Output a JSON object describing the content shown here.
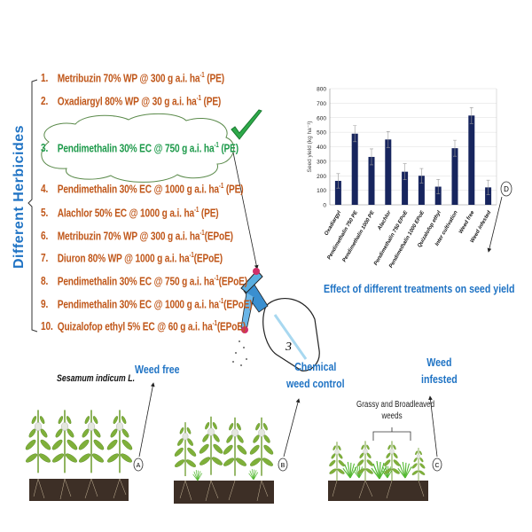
{
  "side_title": "Different Herbicides",
  "herbicides": [
    {
      "num": "1.",
      "name": "Metribuzin 70% WP @ 300 g a.i. ha",
      "sup": "-1",
      "tail": " (PE)"
    },
    {
      "num": "2.",
      "name": "Oxadiargyl 80% WP @ 30 g a.i. ha",
      "sup": "-1",
      "tail": " (PE)"
    },
    {
      "num": "3.",
      "name": "Pendimethalin 30% EC @ 750 g a.i. ha",
      "sup": "-1",
      "tail": " (PE)",
      "highlighted": true
    },
    {
      "num": "4.",
      "name": "Pendimethalin 30% EC @ 1000 g a.i. ha",
      "sup": "-1",
      "tail": " (PE)"
    },
    {
      "num": "5.",
      "name": "Alachlor 50% EC @ 1000 g a.i. ha",
      "sup": "-1",
      "tail": " (PE)"
    },
    {
      "num": "6.",
      "name": "Metribuzin 70% WP @ 300 g a.i. ha",
      "sup": "-1",
      "tail": "(EPoE)"
    },
    {
      "num": "7.",
      "name": "Diuron 80% WP @ 1000 g a.i. ha",
      "sup": "-1",
      "tail": "(EPoE)"
    },
    {
      "num": "8.",
      "name": "Pendimethalin 30% EC @ 750 g a.i. ha",
      "sup": "-1",
      "tail": "(EPoE)"
    },
    {
      "num": "9.",
      "name": "Pendimethalin 30% EC @ 1000 g a.i. ha",
      "sup": "-1",
      "tail": "(EPoE)"
    },
    {
      "num": "10.",
      "name": "Quizalofop ethyl 5% EC @ 60 g a.i. ha",
      "sup": "-1",
      "tail": "(EPoE)"
    }
  ],
  "colors": {
    "herbicide_text": "#c0571a",
    "highlight": "#1e9a4b",
    "label_blue": "#1f73c4",
    "bar": "#17255e"
  },
  "sprayer_label": "3",
  "chart_caption": "Effect of different treatments on seed yield",
  "chart_data": {
    "type": "bar",
    "ylabel": "Seed yield (kg ha⁻¹)",
    "ylim": [
      0,
      800
    ],
    "yticks": [
      "0",
      "100",
      "200",
      "300",
      "400",
      "500",
      "600",
      "700",
      "800"
    ],
    "grid": true,
    "categories": [
      "Oxadiargyl",
      "Pendimethalin 750 PE",
      "Pendimethalin 1000 PE",
      "Alachlor",
      "Pendimethalin 750 EPoE",
      "Pendimethalin 1000 EPoE",
      "Quizalofop ethyl",
      "Inter cultivation",
      "Weed free",
      "Weed infested"
    ],
    "values": [
      165,
      490,
      330,
      450,
      228,
      200,
      125,
      390,
      615,
      120
    ],
    "errors": [
      50,
      55,
      55,
      55,
      55,
      50,
      50,
      55,
      55,
      50
    ]
  },
  "panels": {
    "a": {
      "marker": "A",
      "label": "Weed free",
      "species": "Sesamum indicum L."
    },
    "b": {
      "marker": "B",
      "label_line1": "Chemical",
      "label_line2": "weed control"
    },
    "c": {
      "marker": "C",
      "label_line1": "Weed",
      "label_line2": "infested",
      "weeds_line1": "Grassy and Broadleaved",
      "weeds_line2": "weeds"
    },
    "d": {
      "marker": "D"
    }
  }
}
